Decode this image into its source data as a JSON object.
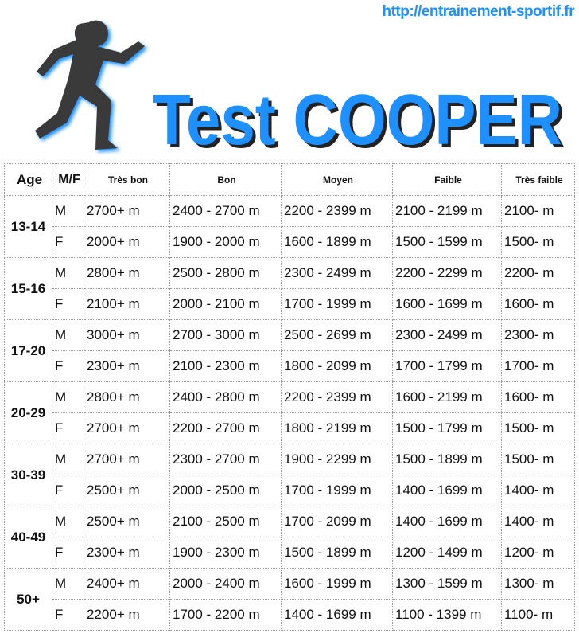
{
  "header": {
    "url": "http://entrainement-sportif.fr",
    "title": "Test COOPER"
  },
  "table": {
    "headers": [
      "Age",
      "M/F",
      "Très bon",
      "Bon",
      "Moyen",
      "Faible",
      "Très faible"
    ],
    "groups": [
      {
        "age": "13-14",
        "rows": [
          [
            "M",
            "2700+ m",
            "2400 - 2700 m",
            "2200 - 2399 m",
            "2100 - 2199 m",
            "2100- m"
          ],
          [
            "F",
            "2000+ m",
            "1900 - 2000 m",
            "1600 - 1899 m",
            "1500 - 1599 m",
            "1500- m"
          ]
        ]
      },
      {
        "age": "15-16",
        "rows": [
          [
            "M",
            "2800+ m",
            "2500 - 2800 m",
            "2300 - 2499 m",
            "2200 - 2299 m",
            "2200- m"
          ],
          [
            "F",
            "2100+ m",
            "2000 - 2100 m",
            "1700 - 1999 m",
            "1600 - 1699 m",
            "1600- m"
          ]
        ]
      },
      {
        "age": "17-20",
        "rows": [
          [
            "M",
            "3000+ m",
            "2700 - 3000 m",
            "2500 - 2699 m",
            "2300 - 2499 m",
            "2300- m"
          ],
          [
            "F",
            "2300+ m",
            "2100 - 2300 m",
            "1800 - 2099 m",
            "1700 - 1799 m",
            "1700- m"
          ]
        ]
      },
      {
        "age": "20-29",
        "rows": [
          [
            "M",
            "2800+ m",
            "2400 - 2800 m",
            "2200 - 2399 m",
            "1600 - 2199 m",
            "1600- m"
          ],
          [
            "F",
            "2700+ m",
            "2200 - 2700 m",
            "1800 - 2199 m",
            "1500 - 1799 m",
            "1500- m"
          ]
        ]
      },
      {
        "age": "30-39",
        "rows": [
          [
            "M",
            "2700+ m",
            "2300 - 2700 m",
            "1900 - 2299 m",
            "1500 - 1899 m",
            "1500- m"
          ],
          [
            "F",
            "2500+ m",
            "2000 - 2500 m",
            "1700 - 1999 m",
            "1400 - 1699 m",
            "1400- m"
          ]
        ]
      },
      {
        "age": "40-49",
        "rows": [
          [
            "M",
            "2500+ m",
            "2100 - 2500 m",
            "1700 - 2099 m",
            "1400 - 1699 m",
            "1400- m"
          ],
          [
            "F",
            "2300+ m",
            "1900 - 2300 m",
            "1500 - 1899 m",
            "1200 - 1499 m",
            "1200- m"
          ]
        ]
      },
      {
        "age": "50+",
        "rows": [
          [
            "M",
            "2400+ m",
            "2000 - 2400 m",
            "1600 - 1999 m",
            "1300 - 1599 m",
            "1300- m"
          ],
          [
            "F",
            "2200+ m",
            "1700 - 2200 m",
            "1400 - 1699 m",
            "1100 - 1399 m",
            "1100- m"
          ]
        ]
      }
    ]
  }
}
